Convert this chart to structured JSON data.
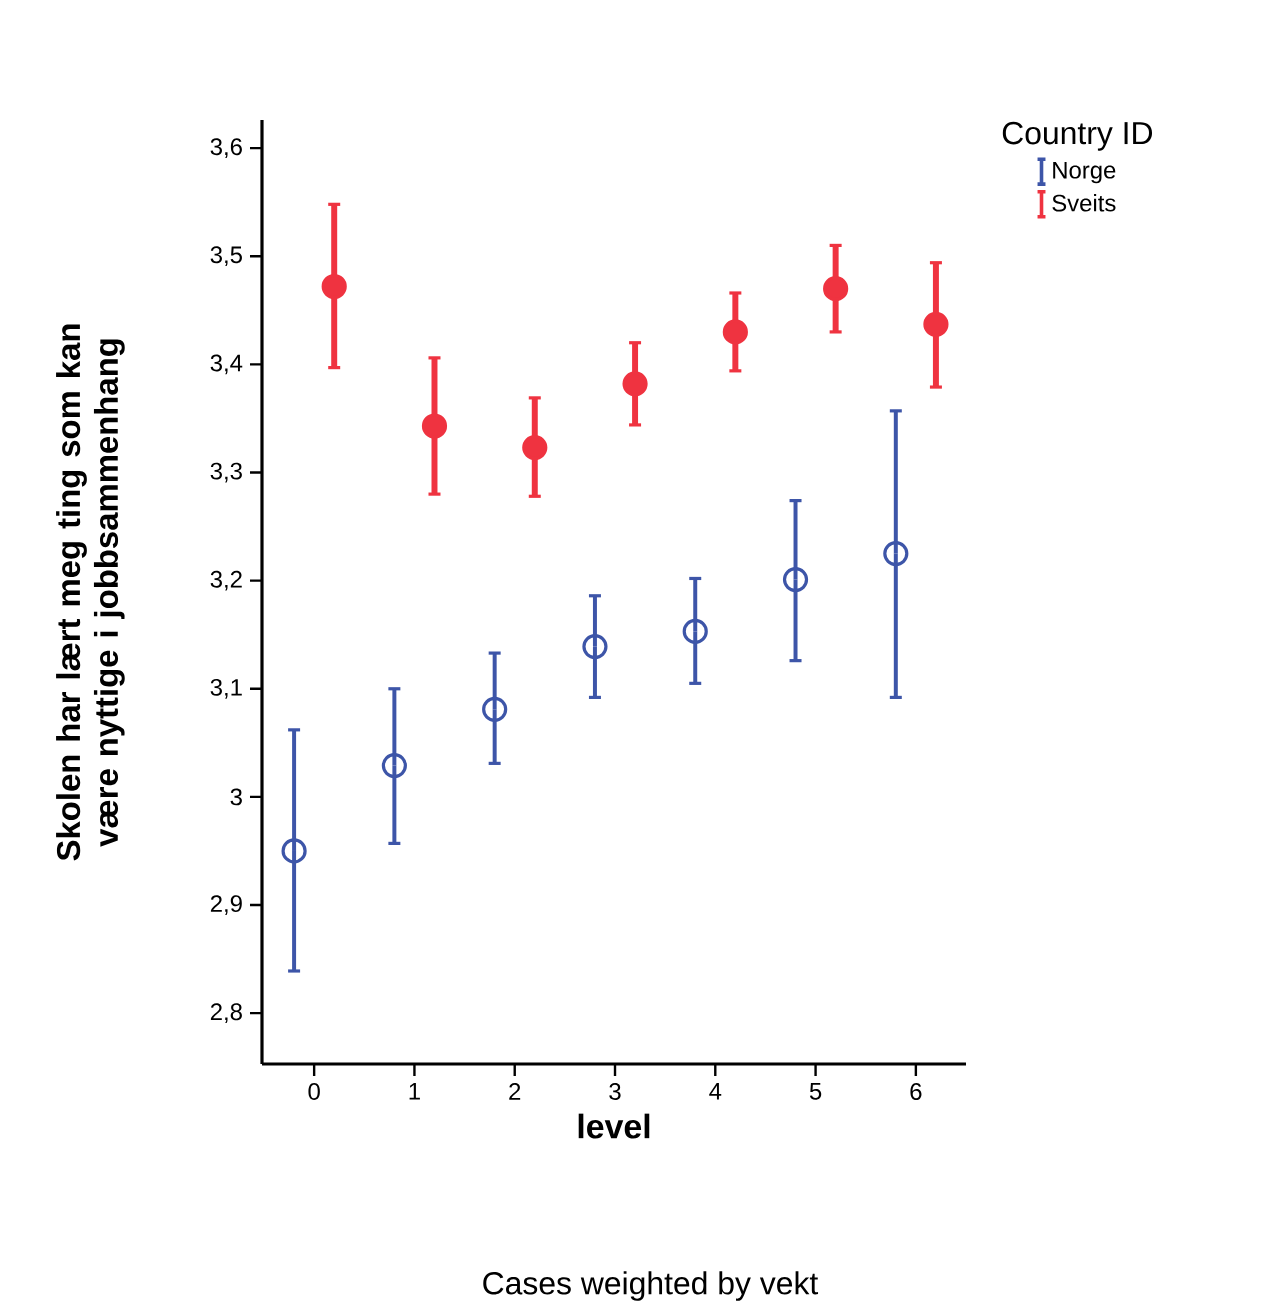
{
  "chart_data": {
    "type": "scatter",
    "xlabel": "level",
    "ylabel": "Skolen har lært meg ting som kan være nyttige i jobbsammenhang",
    "legend_title": "Country ID",
    "categories": [
      "0",
      "1",
      "2",
      "3",
      "4",
      "5",
      "6"
    ],
    "series": [
      {
        "name": "Norge",
        "color": "#3d55a8",
        "marker": "circle",
        "values": [
          2.95,
          3.029,
          3.081,
          3.139,
          3.153,
          3.201,
          3.225
        ],
        "errors": [
          [
            2.839,
            3.062
          ],
          [
            2.957,
            3.1
          ],
          [
            3.031,
            3.133
          ],
          [
            3.092,
            3.186
          ],
          [
            3.105,
            3.202
          ],
          [
            3.126,
            3.274
          ],
          [
            3.092,
            3.357
          ]
        ]
      },
      {
        "name": "Sveits",
        "color": "#ef3340",
        "marker": "circle",
        "values": [
          3.472,
          3.343,
          3.323,
          3.382,
          3.43,
          3.47,
          3.437
        ],
        "errors": [
          [
            3.397,
            3.548
          ],
          [
            3.28,
            3.406
          ],
          [
            3.278,
            3.369
          ],
          [
            3.344,
            3.42
          ],
          [
            3.394,
            3.466
          ],
          [
            3.43,
            3.51
          ],
          [
            3.379,
            3.494
          ]
        ]
      }
    ],
    "ylim": [
      2.753,
      3.626
    ],
    "yticks": [
      {
        "value": 2.8,
        "label": "2,8"
      },
      {
        "value": 2.9,
        "label": "2,9"
      },
      3,
      {
        "value": 3.1,
        "label": "3,1"
      },
      {
        "value": 3.2,
        "label": "3,2"
      },
      {
        "value": 3.3,
        "label": "3,3"
      },
      {
        "value": 3.4,
        "label": "3,4"
      },
      {
        "value": 3.5,
        "label": "3,5"
      },
      {
        "value": 3.6,
        "label": "3,6"
      }
    ],
    "legend": "top right",
    "annotations": [
      "Cases weighted by vekt"
    ]
  }
}
